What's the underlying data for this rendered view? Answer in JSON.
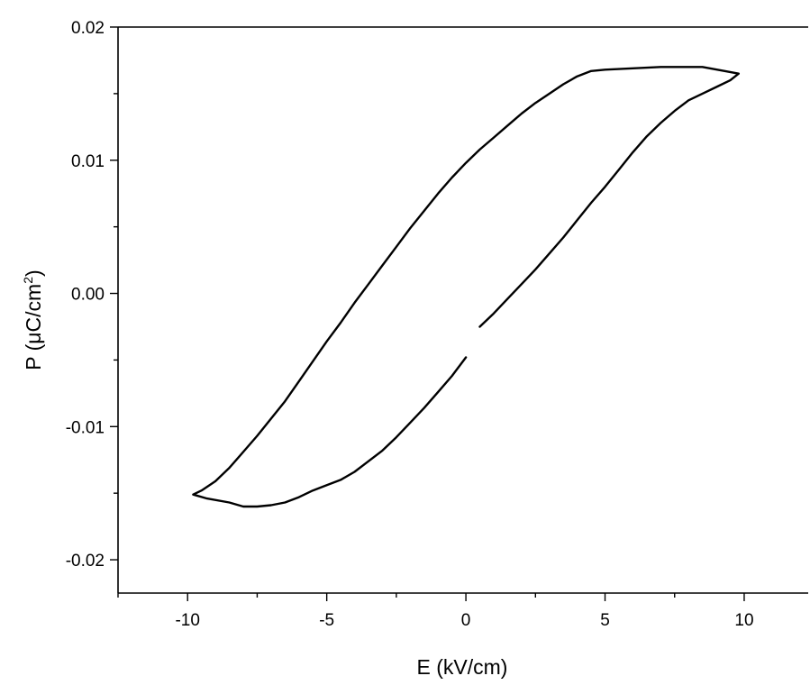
{
  "chart_data": {
    "type": "line",
    "title": "",
    "xlabel": "E (kV/cm)",
    "ylabel_prefix": "P (",
    "ylabel_unit": "μC/cm",
    "ylabel_sup": "2",
    "ylabel_suffix": ")",
    "xlim": [
      -12.5,
      12.3
    ],
    "ylim": [
      -0.0225,
      0.02
    ],
    "xticks": [
      -10,
      -5,
      0,
      5,
      10
    ],
    "xtick_labels": [
      "-10",
      "-5",
      "0",
      "5",
      "10"
    ],
    "yticks": [
      -0.02,
      -0.01,
      0.0,
      0.01,
      0.02
    ],
    "ytick_labels": [
      "-0.02",
      "-0.01",
      "0.00",
      "0.01",
      "0.02"
    ],
    "grid": false,
    "series": [
      {
        "segments": [
          {
            "x": [
              0.5,
              1.0,
              1.5,
              2.0,
              2.5,
              3.0,
              3.5,
              4.0,
              4.5,
              5.0,
              5.5,
              6.0,
              6.5,
              7.0,
              7.5,
              8.0,
              8.5,
              9.0,
              9.5,
              9.8,
              9.3,
              8.5,
              8.0,
              7.0,
              6.0,
              5.0,
              4.5,
              4.0,
              3.5,
              3.0,
              2.5,
              2.0,
              1.5,
              1.0,
              0.5,
              0.0,
              -0.5,
              -1.0,
              -1.5,
              -2.0,
              -2.5,
              -3.0,
              -3.5,
              -4.0,
              -4.5,
              -5.0,
              -5.5,
              -6.0,
              -6.5,
              -7.0,
              -7.5,
              -8.0,
              -8.5,
              -9.0,
              -9.5,
              -9.8,
              -9.3,
              -8.5,
              -8.0,
              -7.5,
              -7.0,
              -6.5,
              -6.0,
              -5.5,
              -5.0,
              -4.5,
              -4.0,
              -3.5,
              -3.0,
              -2.5,
              -2.0,
              -1.5,
              -1.0,
              -0.5,
              0.0
            ],
            "y": [
              -0.0025,
              -0.0015,
              -0.0004,
              0.0007,
              0.0018,
              0.003,
              0.0042,
              0.0055,
              0.0068,
              0.008,
              0.0093,
              0.0106,
              0.0118,
              0.0128,
              0.0137,
              0.0145,
              0.015,
              0.0155,
              0.016,
              0.0165,
              0.0167,
              0.017,
              0.017,
              0.017,
              0.0169,
              0.0168,
              0.0167,
              0.0163,
              0.0157,
              0.015,
              0.0143,
              0.0135,
              0.0126,
              0.0117,
              0.0108,
              0.0098,
              0.0087,
              0.0075,
              0.0062,
              0.0049,
              0.0035,
              0.0021,
              0.0007,
              -0.0007,
              -0.0022,
              -0.0036,
              -0.0051,
              -0.0066,
              -0.0081,
              -0.0094,
              -0.0107,
              -0.0119,
              -0.0131,
              -0.0141,
              -0.0148,
              -0.0151,
              -0.0154,
              -0.0157,
              -0.016,
              -0.016,
              -0.0159,
              -0.0157,
              -0.0153,
              -0.0148,
              -0.0144,
              -0.014,
              -0.0134,
              -0.0126,
              -0.0118,
              -0.0108,
              -0.0097,
              -0.0086,
              -0.0074,
              -0.0062,
              -0.0048
            ]
          }
        ]
      }
    ]
  }
}
